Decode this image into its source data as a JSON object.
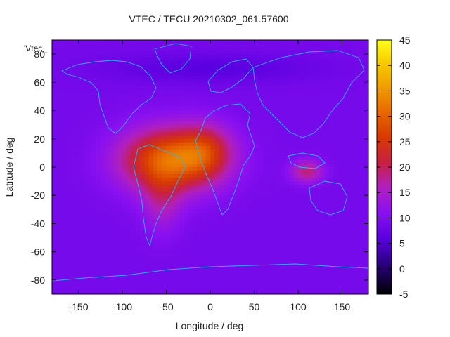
{
  "chart_data": {
    "type": "heatmap",
    "title": "VTEC / TECU 20210302_061.57600",
    "xlabel": "Longitude / deg",
    "ylabel": "Latitude / deg",
    "legend_label": "'Vtec_",
    "xlim": [
      -180,
      180
    ],
    "ylim": [
      -90,
      90
    ],
    "x_ticks": [
      -150,
      -100,
      -50,
      0,
      50,
      100,
      150
    ],
    "y_ticks": [
      -80,
      -60,
      -40,
      -20,
      0,
      20,
      40,
      60,
      80
    ],
    "colorbar": {
      "range": [
        -5,
        45
      ],
      "ticks": [
        -5,
        0,
        5,
        10,
        15,
        20,
        25,
        30,
        35,
        40,
        45
      ]
    },
    "background_value": 9,
    "anomalies": [
      {
        "lon": -45,
        "lat": 5,
        "sx": 55,
        "sy": 22,
        "amp": 22
      },
      {
        "lon": -5,
        "lat": 12,
        "sx": 30,
        "sy": 18,
        "amp": 9
      },
      {
        "lon": -55,
        "lat": -25,
        "sx": 22,
        "sy": 22,
        "amp": 6
      },
      {
        "lon": 110,
        "lat": -3,
        "sx": 18,
        "sy": 8,
        "amp": 10
      },
      {
        "lon": 0,
        "lat": 70,
        "sx": 120,
        "sy": 10,
        "amp": -3
      }
    ],
    "grid": false
  }
}
